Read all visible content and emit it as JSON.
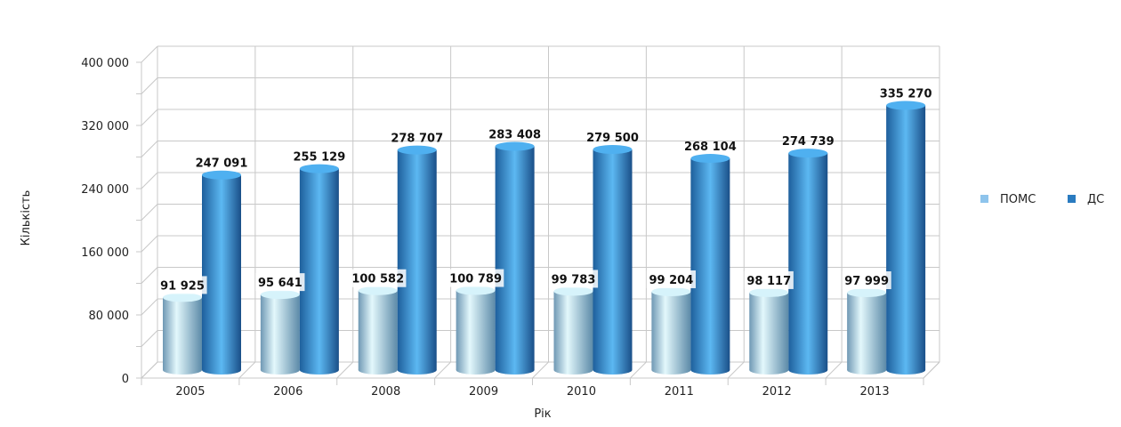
{
  "chart_data": {
    "type": "bar",
    "categories": [
      "2005",
      "2006",
      "2008",
      "2009",
      "2010",
      "2011",
      "2012",
      "2013"
    ],
    "series": [
      {
        "name": "ПОМС",
        "values": [
          91925,
          95641,
          100582,
          100789,
          99783,
          99204,
          98117,
          97999
        ],
        "color": "#8ec4ec"
      },
      {
        "name": "ДС",
        "values": [
          247091,
          255129,
          278707,
          283408,
          279500,
          268104,
          274739,
          335270
        ],
        "color": "#2a7bc0"
      }
    ],
    "data_labels": {
      "ПОМС": [
        "91 925",
        "95 641",
        "100 582",
        "100 789",
        "99 783",
        "99 204",
        "98 117",
        "97 999"
      ],
      "ДС": [
        "247 091",
        "255 129",
        "278 707",
        "283 408",
        "279 500",
        "268 104",
        "274 739",
        "335 270"
      ]
    },
    "xlabel": "Рік",
    "ylabel": "Кількість",
    "ylim": [
      0,
      400000
    ],
    "yticks": [
      0,
      80000,
      160000,
      240000,
      320000,
      400000
    ],
    "ytick_labels": [
      "0",
      "80 000",
      "160 000",
      "240 000",
      "320 000",
      "400 000"
    ],
    "grid": true,
    "legend": "right",
    "style": "3d-cylinder"
  }
}
